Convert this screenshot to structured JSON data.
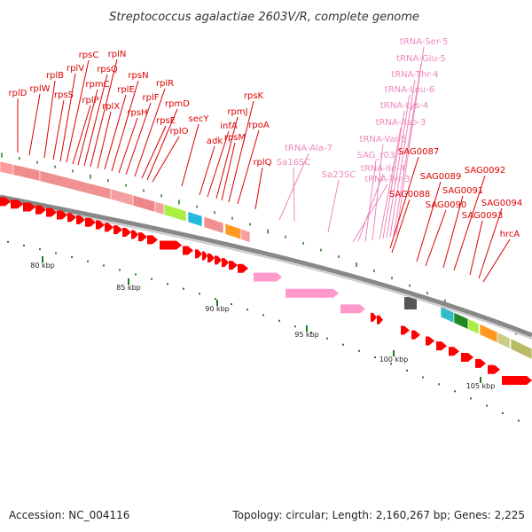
{
  "title": "Streptococcus agalactiae 2603V/R, complete genome",
  "footer": {
    "accession": "Accession: NC_004116",
    "topology": "Topology: circular; Length: 2,160,267 bp; Genes: 2,225"
  },
  "colors": {
    "gene_label": "#dd0000",
    "rna_label": "#ee88bb",
    "gene_arrow": "#ff0000",
    "rna_arrow": "#ff99cc",
    "backbone": "#888888",
    "ticks": "#1e7a1e"
  },
  "tick_labels": [
    "80 kbp",
    "85 kbp",
    "90 kbp",
    "95 kbp",
    "100 kbp",
    "105 kbp"
  ],
  "gene_labels": [
    {
      "text": "rplD",
      "type": "gene"
    },
    {
      "text": "rplW",
      "type": "gene"
    },
    {
      "text": "rplB",
      "type": "gene"
    },
    {
      "text": "rpsS",
      "type": "gene"
    },
    {
      "text": "rplV",
      "type": "gene"
    },
    {
      "text": "rpsC",
      "type": "gene"
    },
    {
      "text": "rplP",
      "type": "gene"
    },
    {
      "text": "rpmC",
      "type": "gene"
    },
    {
      "text": "rpsQ",
      "type": "gene"
    },
    {
      "text": "rplN",
      "type": "gene"
    },
    {
      "text": "rplX",
      "type": "gene"
    },
    {
      "text": "rplE",
      "type": "gene"
    },
    {
      "text": "rpsN",
      "type": "gene"
    },
    {
      "text": "rpsH",
      "type": "gene"
    },
    {
      "text": "rplF",
      "type": "gene"
    },
    {
      "text": "rplR",
      "type": "gene"
    },
    {
      "text": "rpsE",
      "type": "gene"
    },
    {
      "text": "rpmD",
      "type": "gene"
    },
    {
      "text": "rplO",
      "type": "gene"
    },
    {
      "text": "secY",
      "type": "gene"
    },
    {
      "text": "adk",
      "type": "gene"
    },
    {
      "text": "infA",
      "type": "gene"
    },
    {
      "text": "rpmJ",
      "type": "gene"
    },
    {
      "text": "rpsM",
      "type": "gene"
    },
    {
      "text": "rpsK",
      "type": "gene"
    },
    {
      "text": "rpoA",
      "type": "gene"
    },
    {
      "text": "rplQ",
      "type": "gene"
    },
    {
      "text": "tRNA-Ala-7",
      "type": "rna"
    },
    {
      "text": "Sa16SC",
      "type": "rna"
    },
    {
      "text": "Sa23SC",
      "type": "rna"
    },
    {
      "text": "tRNA-Ser-5",
      "type": "rna"
    },
    {
      "text": "tRNA-Glu-5",
      "type": "rna"
    },
    {
      "text": "tRNA-Thr-4",
      "type": "rna"
    },
    {
      "text": "tRNA-Leu-6",
      "type": "rna"
    },
    {
      "text": "tRNA-Lys-4",
      "type": "rna"
    },
    {
      "text": "tRNA-Asp-3",
      "type": "rna"
    },
    {
      "text": "tRNA-Val-5",
      "type": "rna"
    },
    {
      "text": "SAG_r03",
      "type": "rna"
    },
    {
      "text": "tRNA-Ile-4",
      "type": "rna"
    },
    {
      "text": "tRNA-Tyr-3",
      "type": "rna"
    },
    {
      "text": "SAG0087",
      "type": "gene"
    },
    {
      "text": "SAG0088",
      "type": "gene"
    },
    {
      "text": "SAG0089",
      "type": "gene"
    },
    {
      "text": "SAG0090",
      "type": "gene"
    },
    {
      "text": "SAG0091",
      "type": "gene"
    },
    {
      "text": "SAG0092",
      "type": "gene"
    },
    {
      "text": "SAG0093",
      "type": "gene"
    },
    {
      "text": "SAG0094",
      "type": "gene"
    },
    {
      "text": "hrcA",
      "type": "gene"
    }
  ]
}
